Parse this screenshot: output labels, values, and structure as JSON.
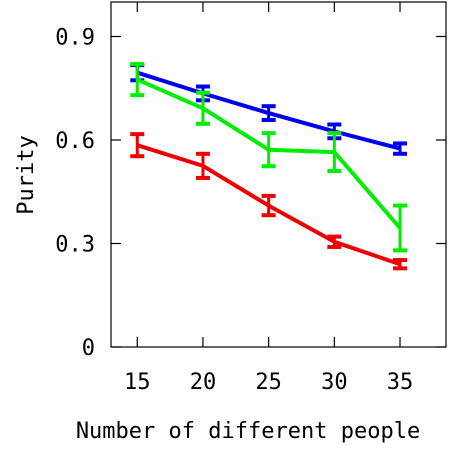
{
  "chart_data": {
    "type": "line",
    "xlabel": "Number of different people",
    "ylabel": "Purity",
    "x": [
      15,
      20,
      25,
      30,
      35
    ],
    "xlim": [
      13,
      38.5
    ],
    "ylim": [
      0,
      1.0
    ],
    "xticks": [
      15,
      20,
      25,
      30,
      35
    ],
    "yticks": [
      0,
      0.3,
      0.6,
      0.9
    ],
    "ytick_labels": [
      "0",
      "0.3",
      "0.6",
      "0.9"
    ],
    "xtick_labels": [
      "15",
      "20",
      "25",
      "30",
      "35"
    ],
    "grid": false,
    "legend": "none",
    "series": [
      {
        "color": "#0000ee",
        "values": [
          0.795,
          0.735,
          0.678,
          0.625,
          0.575
        ],
        "errors": [
          0.022,
          0.02,
          0.02,
          0.02,
          0.015
        ]
      },
      {
        "color": "#00ee00",
        "values": [
          0.775,
          0.692,
          0.572,
          0.565,
          0.345
        ],
        "errors": [
          0.045,
          0.045,
          0.048,
          0.055,
          0.065
        ]
      },
      {
        "color": "#ee0000",
        "values": [
          0.585,
          0.525,
          0.41,
          0.305,
          0.24
        ],
        "errors": [
          0.032,
          0.035,
          0.028,
          0.015,
          0.012
        ]
      }
    ]
  }
}
